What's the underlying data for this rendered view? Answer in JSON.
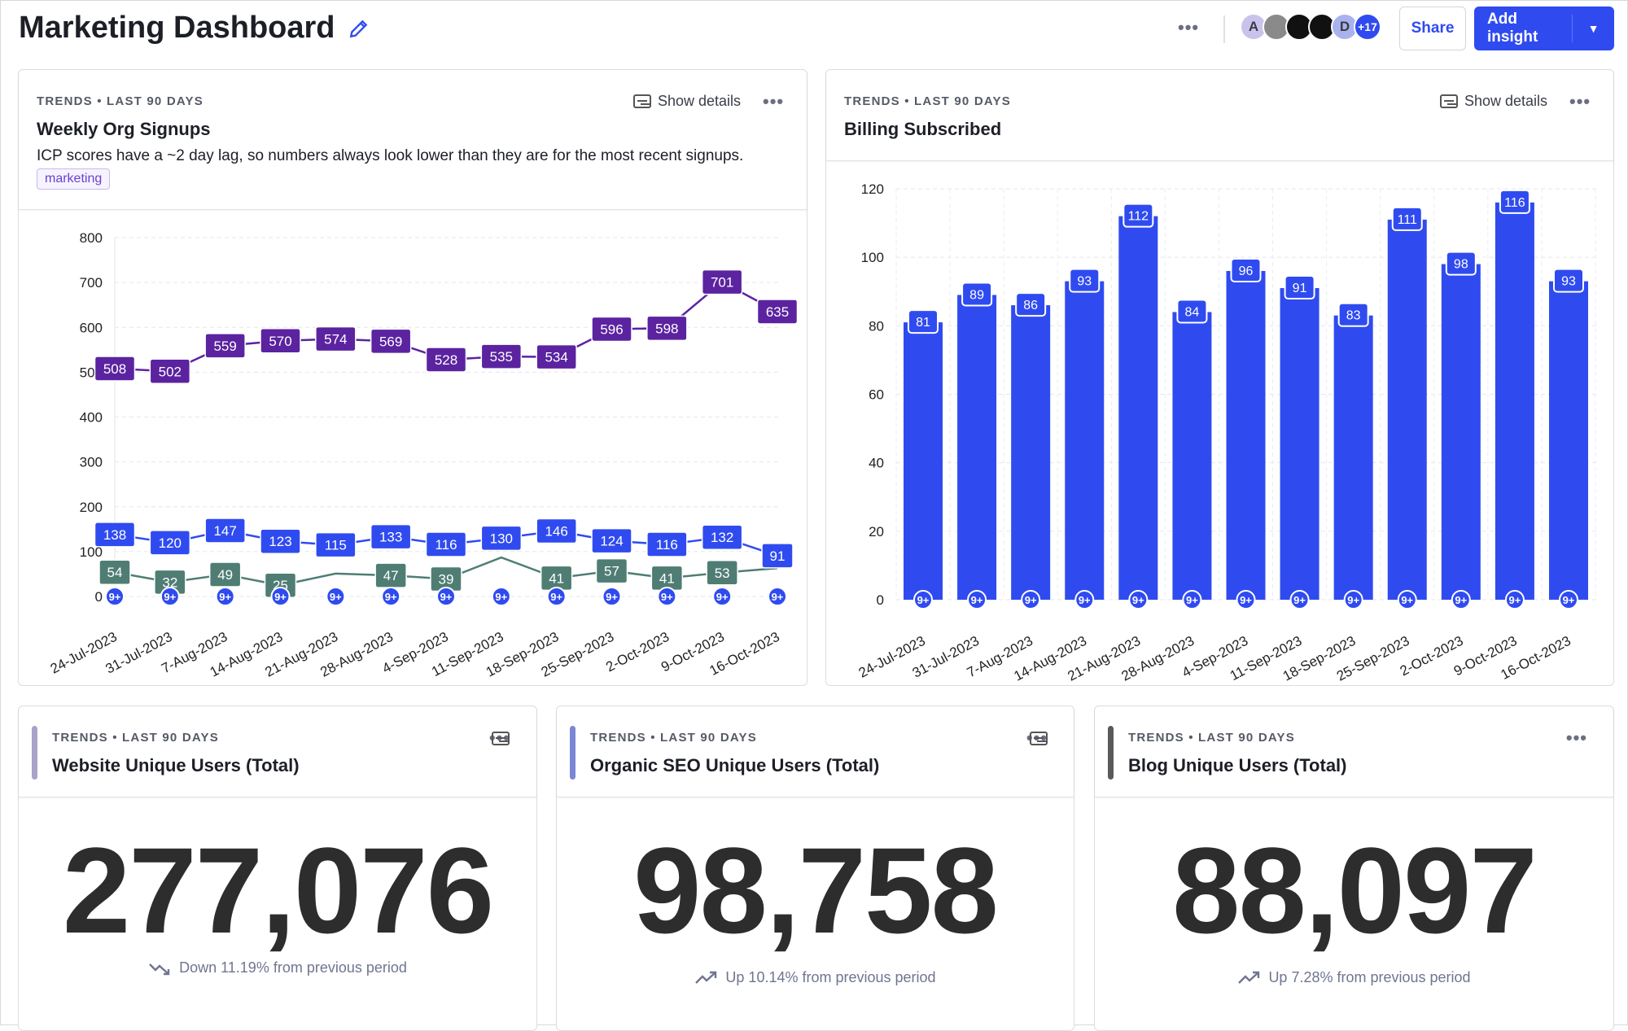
{
  "header": {
    "title": "Marketing Dashboard",
    "edit_icon": "pencil-icon",
    "more_icon": "ellipsis-icon",
    "avatars": [
      {
        "initial": "A",
        "color": "#c9c3ec"
      },
      {
        "initial": "",
        "color": "#8a8a8a"
      },
      {
        "initial": "",
        "color": "#111111"
      },
      {
        "initial": "",
        "color": "#111111"
      },
      {
        "initial": "D",
        "color": "#a9b2ef"
      },
      {
        "initial": "+17",
        "color": "#2f4bf0"
      }
    ],
    "share_label": "Share",
    "add_insight_label": "Add insight"
  },
  "cards": [
    {
      "kicker": "TRENDS • LAST 90 DAYS",
      "title": "Weekly Org Signups",
      "description": "ICP scores have a ~2 day lag, so numbers always look lower than they are for the most recent signups.",
      "tag": "marketing",
      "show_details": "Show details"
    },
    {
      "kicker": "TRENDS • LAST 90 DAYS",
      "title": "Billing Subscribed",
      "show_details": "Show details"
    },
    {
      "kicker": "TRENDS • LAST 90 DAYS",
      "title": "Website Unique Users (Total)",
      "value": "277,076",
      "trend": "Down 11.19% from previous period",
      "trend_direction": "down",
      "accent": "#a9a3c9"
    },
    {
      "kicker": "TRENDS • LAST 90 DAYS",
      "title": "Organic SEO Unique Users (Total)",
      "value": "98,758",
      "trend": "Up 10.14% from previous period",
      "trend_direction": "up",
      "accent": "#7c86d6"
    },
    {
      "kicker": "TRENDS • LAST 90 DAYS",
      "title": "Blog Unique Users (Total)",
      "value": "88,097",
      "trend": "Up 7.28% from previous period",
      "trend_direction": "up",
      "accent": "#5a5a5a"
    }
  ],
  "chart_data": [
    {
      "type": "line",
      "categories": [
        "24-Jul-2023",
        "31-Jul-2023",
        "7-Aug-2023",
        "14-Aug-2023",
        "21-Aug-2023",
        "28-Aug-2023",
        "4-Sep-2023",
        "11-Sep-2023",
        "18-Sep-2023",
        "25-Sep-2023",
        "2-Oct-2023",
        "9-Oct-2023",
        "16-Oct-2023"
      ],
      "ylim": [
        0,
        800
      ],
      "yticks": [
        0,
        100,
        200,
        300,
        400,
        500,
        600,
        700,
        800
      ],
      "grid": true,
      "series": [
        {
          "color": "#5b23a0",
          "values": [
            508,
            502,
            559,
            570,
            574,
            569,
            528,
            535,
            534,
            596,
            598,
            701,
            635
          ]
        },
        {
          "color": "#2f4bf0",
          "values": [
            138,
            120,
            147,
            123,
            115,
            133,
            116,
            130,
            146,
            124,
            116,
            132,
            91
          ]
        },
        {
          "color": "#4f7d74",
          "values": [
            54,
            32,
            49,
            25,
            51,
            47,
            39,
            87,
            41,
            57,
            41,
            53,
            63
          ]
        }
      ],
      "annotation_label": "9+",
      "annotation_color": "#2f4bf0"
    },
    {
      "type": "bar",
      "categories": [
        "24-Jul-2023",
        "31-Jul-2023",
        "7-Aug-2023",
        "14-Aug-2023",
        "21-Aug-2023",
        "28-Aug-2023",
        "4-Sep-2023",
        "11-Sep-2023",
        "18-Sep-2023",
        "25-Sep-2023",
        "2-Oct-2023",
        "9-Oct-2023",
        "16-Oct-2023"
      ],
      "ylim": [
        0,
        120
      ],
      "yticks": [
        0,
        20,
        40,
        60,
        80,
        100,
        120
      ],
      "grid": true,
      "values": [
        81,
        89,
        86,
        93,
        112,
        84,
        96,
        91,
        83,
        111,
        98,
        116,
        93
      ],
      "color": "#2f4bf0",
      "annotation_label": "9+"
    }
  ]
}
